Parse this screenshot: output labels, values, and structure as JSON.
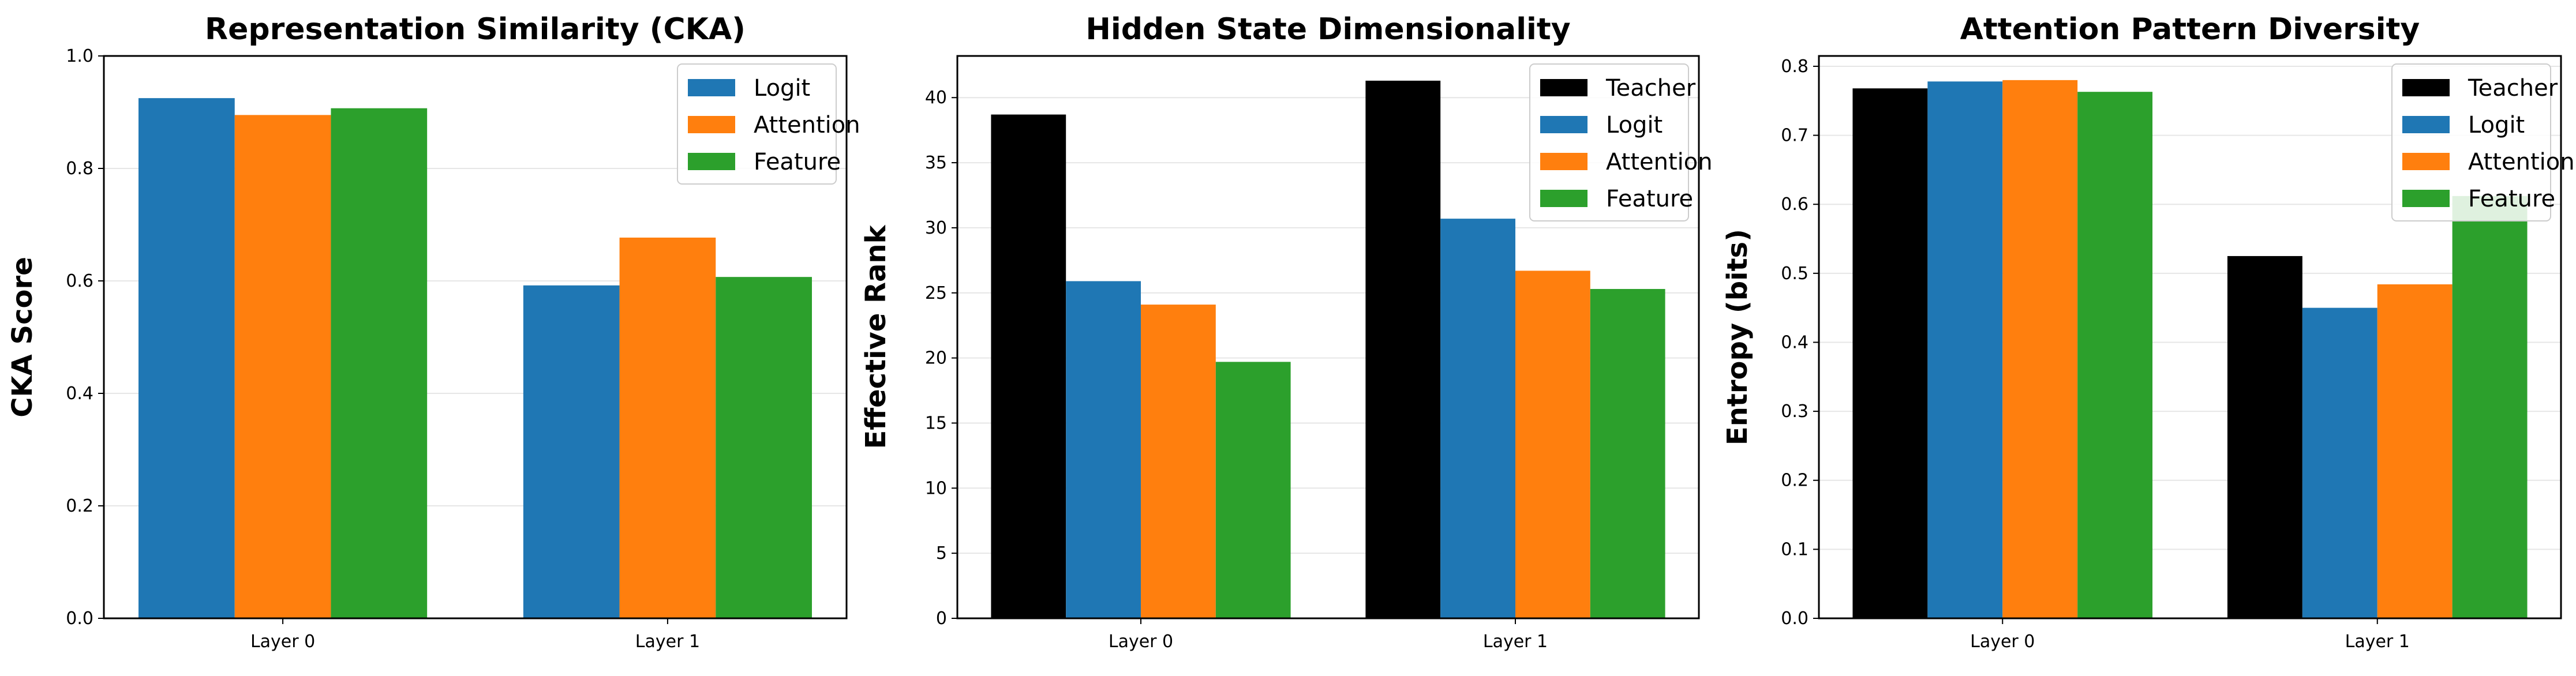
{
  "colors": {
    "Teacher": "#000000",
    "Logit": "#1f77b4",
    "Attention": "#ff7f0e",
    "Feature": "#2ca02c"
  },
  "chart_data": [
    {
      "type": "bar",
      "title": "Representation Similarity (CKA)",
      "xlabel": "",
      "ylabel": "CKA Score",
      "categories": [
        "Layer 0",
        "Layer 1"
      ],
      "ylim": [
        0,
        1.0
      ],
      "yticks": [
        0.0,
        0.2,
        0.4,
        0.6,
        0.8,
        1.0
      ],
      "ytick_labels": [
        "0.0",
        "0.2",
        "0.4",
        "0.6",
        "0.8",
        "1.0"
      ],
      "grid": true,
      "legend": "top-right",
      "series": [
        {
          "name": "Logit",
          "values": [
            0.925,
            0.592
          ]
        },
        {
          "name": "Attention",
          "values": [
            0.895,
            0.677
          ]
        },
        {
          "name": "Feature",
          "values": [
            0.907,
            0.607
          ]
        }
      ]
    },
    {
      "type": "bar",
      "title": "Hidden State Dimensionality",
      "xlabel": "",
      "ylabel": "Effective Rank",
      "categories": [
        "Layer 0",
        "Layer 1"
      ],
      "ylim": [
        0,
        43.2
      ],
      "yticks": [
        0,
        5,
        10,
        15,
        20,
        25,
        30,
        35,
        40
      ],
      "ytick_labels": [
        "0",
        "5",
        "10",
        "15",
        "20",
        "25",
        "30",
        "35",
        "40"
      ],
      "grid": true,
      "legend": "top-right",
      "series": [
        {
          "name": "Teacher",
          "values": [
            38.7,
            41.3
          ]
        },
        {
          "name": "Logit",
          "values": [
            25.9,
            30.7
          ]
        },
        {
          "name": "Attention",
          "values": [
            24.1,
            26.7
          ]
        },
        {
          "name": "Feature",
          "values": [
            19.7,
            25.3
          ]
        }
      ]
    },
    {
      "type": "bar",
      "title": "Attention Pattern Diversity",
      "xlabel": "",
      "ylabel": "Entropy (bits)",
      "categories": [
        "Layer 0",
        "Layer 1"
      ],
      "ylim": [
        0,
        0.815
      ],
      "yticks": [
        0.0,
        0.1,
        0.2,
        0.3,
        0.4,
        0.5,
        0.6,
        0.7,
        0.8
      ],
      "ytick_labels": [
        "0.0",
        "0.1",
        "0.2",
        "0.3",
        "0.4",
        "0.5",
        "0.6",
        "0.7",
        "0.8"
      ],
      "grid": true,
      "legend": "top-right",
      "series": [
        {
          "name": "Teacher",
          "values": [
            0.768,
            0.525
          ]
        },
        {
          "name": "Logit",
          "values": [
            0.778,
            0.45
          ]
        },
        {
          "name": "Attention",
          "values": [
            0.78,
            0.484
          ]
        },
        {
          "name": "Feature",
          "values": [
            0.763,
            0.612
          ]
        }
      ]
    }
  ]
}
